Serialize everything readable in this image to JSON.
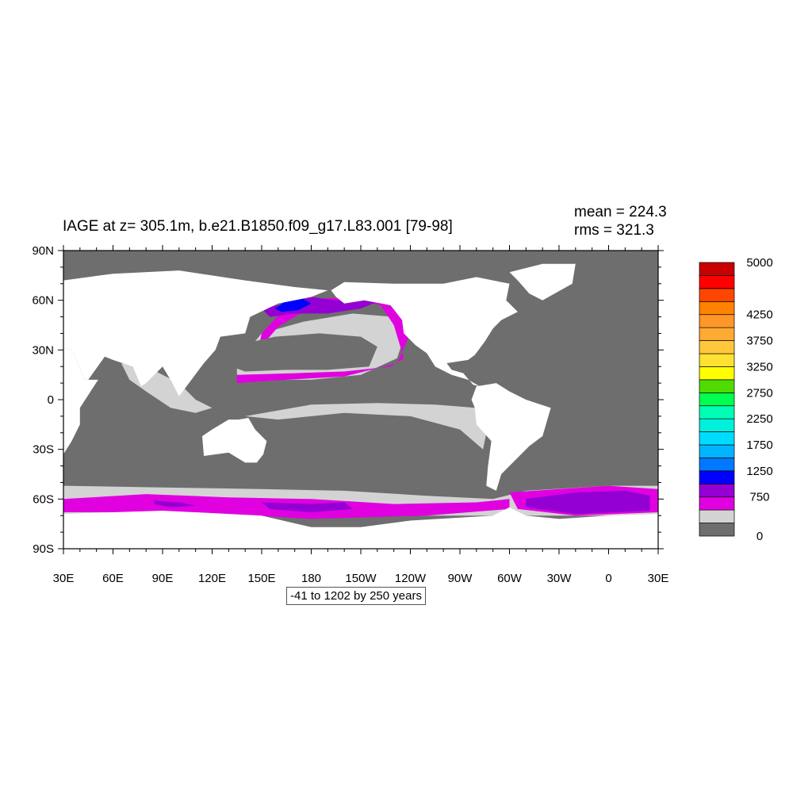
{
  "title": "IAGE at z= 305.1m, b.e21.B1850.f09_g17.L83.001 [79-98]",
  "stats": {
    "mean": "mean = 224.3",
    "rms": "rms = 321.3"
  },
  "range_label": "-41 to 1202 by 250 years",
  "colors": {
    "land": "#ffffff",
    "bin_0": "#6e6e6e",
    "bin_250": "#d3d3d3",
    "bin_500": "#e000e0",
    "bin_750": "#9400d3",
    "bin_1000": "#0000ff"
  },
  "chart_data": {
    "type": "heatmap",
    "map": {
      "projection": "cylindrical-equidistant",
      "lon_range": [
        30,
        390
      ],
      "lat_range": [
        -90,
        90
      ],
      "lon_ticks": [
        "30E",
        "60E",
        "90E",
        "120E",
        "150E",
        "180",
        "150W",
        "120W",
        "90W",
        "60W",
        "30W",
        "0",
        "30E"
      ],
      "lat_ticks": [
        "90N",
        "60N",
        "30N",
        "0",
        "30S",
        "60S",
        "90S"
      ]
    },
    "colorbar": {
      "levels": [
        0,
        250,
        500,
        750,
        1000,
        1250,
        1500,
        1750,
        2000,
        2250,
        2500,
        2750,
        3000,
        3250,
        3500,
        3750,
        4000,
        4250,
        4500,
        4750,
        5000
      ],
      "labeled_levels": [
        "0",
        "750",
        "1250",
        "1750",
        "2250",
        "2750",
        "3250",
        "3750",
        "4250",
        "5000"
      ],
      "colors": [
        "#6e6e6e",
        "#d3d3d3",
        "#e000e0",
        "#9400d3",
        "#0000ff",
        "#0078ff",
        "#00b4ff",
        "#00dcff",
        "#00f0dc",
        "#00ffb4",
        "#00ff50",
        "#50dc00",
        "#ffff00",
        "#ffe132",
        "#ffc83c",
        "#ffaa32",
        "#ff9628",
        "#ff8200",
        "#ff4600",
        "#ff0000",
        "#c80000"
      ]
    },
    "regions": [
      {
        "name": "eurasia",
        "level": "land",
        "poly": [
          [
            30,
            72
          ],
          [
            60,
            76
          ],
          [
            100,
            78
          ],
          [
            140,
            72
          ],
          [
            170,
            68
          ],
          [
            190,
            66
          ],
          [
            180,
            62
          ],
          [
            160,
            58
          ],
          [
            143,
            50
          ],
          [
            140,
            40
          ],
          [
            125,
            38
          ],
          [
            122,
            30
          ],
          [
            115,
            22
          ],
          [
            106,
            10
          ],
          [
            100,
            2
          ],
          [
            96,
            10
          ],
          [
            90,
            20
          ],
          [
            80,
            10
          ],
          [
            77,
            8
          ],
          [
            72,
            20
          ],
          [
            60,
            24
          ],
          [
            55,
            26
          ],
          [
            45,
            12
          ],
          [
            43,
            12
          ],
          [
            35,
            30
          ],
          [
            30,
            31
          ]
        ]
      },
      {
        "name": "africa",
        "level": "land",
        "poly": [
          [
            30,
            31
          ],
          [
            35,
            30
          ],
          [
            43,
            12
          ],
          [
            51,
            12
          ],
          [
            40,
            -5
          ],
          [
            40,
            -15
          ],
          [
            35,
            -25
          ],
          [
            30,
            -33
          ],
          [
            25,
            -35
          ],
          [
            18,
            -35
          ],
          [
            15,
            -25
          ],
          [
            10,
            -5
          ],
          [
            10,
            4
          ],
          [
            0,
            5
          ],
          [
            -10,
            5
          ],
          [
            -17,
            15
          ],
          [
            -17,
            21
          ],
          [
            -10,
            30
          ],
          [
            -5,
            36
          ],
          [
            10,
            37
          ],
          [
            20,
            33
          ]
        ]
      },
      {
        "name": "north-america",
        "level": "land",
        "poly": [
          [
            192,
            66
          ],
          [
            200,
            71
          ],
          [
            230,
            70
          ],
          [
            260,
            70
          ],
          [
            280,
            74
          ],
          [
            300,
            70
          ],
          [
            298,
            60
          ],
          [
            305,
            53
          ],
          [
            295,
            48
          ],
          [
            290,
            43
          ],
          [
            285,
            35
          ],
          [
            279,
            27
          ],
          [
            275,
            24
          ],
          [
            262,
            22
          ],
          [
            265,
            18
          ],
          [
            272,
            16
          ],
          [
            278,
            9
          ],
          [
            282,
            8
          ],
          [
            275,
            12
          ],
          [
            265,
            15
          ],
          [
            255,
            20
          ],
          [
            250,
            28
          ],
          [
            243,
            33
          ],
          [
            236,
            40
          ],
          [
            235,
            48
          ],
          [
            228,
            57
          ],
          [
            212,
            60
          ],
          [
            200,
            58
          ],
          [
            195,
            62
          ]
        ]
      },
      {
        "name": "south-america",
        "level": "land",
        "poly": [
          [
            280,
            8
          ],
          [
            292,
            10
          ],
          [
            300,
            5
          ],
          [
            310,
            0
          ],
          [
            325,
            -5
          ],
          [
            320,
            -22
          ],
          [
            312,
            -28
          ],
          [
            302,
            -38
          ],
          [
            295,
            -45
          ],
          [
            292,
            -55
          ],
          [
            286,
            -52
          ],
          [
            287,
            -40
          ],
          [
            289,
            -25
          ],
          [
            280,
            -15
          ],
          [
            279,
            -5
          ],
          [
            277,
            0
          ]
        ]
      },
      {
        "name": "australia",
        "level": "land",
        "poly": [
          [
            114,
            -22
          ],
          [
            120,
            -18
          ],
          [
            130,
            -12
          ],
          [
            136,
            -12
          ],
          [
            142,
            -11
          ],
          [
            146,
            -18
          ],
          [
            153,
            -25
          ],
          [
            151,
            -33
          ],
          [
            147,
            -38
          ],
          [
            140,
            -38
          ],
          [
            130,
            -32
          ],
          [
            115,
            -34
          ]
        ]
      },
      {
        "name": "greenland",
        "level": "land",
        "poly": [
          [
            300,
            77
          ],
          [
            320,
            82
          ],
          [
            340,
            82
          ],
          [
            338,
            70
          ],
          [
            320,
            60
          ],
          [
            312,
            64
          ],
          [
            305,
            72
          ]
        ]
      },
      {
        "name": "antarctica",
        "level": "land",
        "poly": [
          [
            30,
            -69
          ],
          [
            90,
            -67
          ],
          [
            150,
            -70
          ],
          [
            180,
            -77
          ],
          [
            210,
            -77
          ],
          [
            240,
            -73
          ],
          [
            290,
            -70
          ],
          [
            300,
            -65
          ],
          [
            310,
            -70
          ],
          [
            330,
            -72
          ],
          [
            360,
            -70
          ],
          [
            390,
            -69
          ],
          [
            390,
            -90
          ],
          [
            30,
            -90
          ]
        ]
      }
    ]
  }
}
